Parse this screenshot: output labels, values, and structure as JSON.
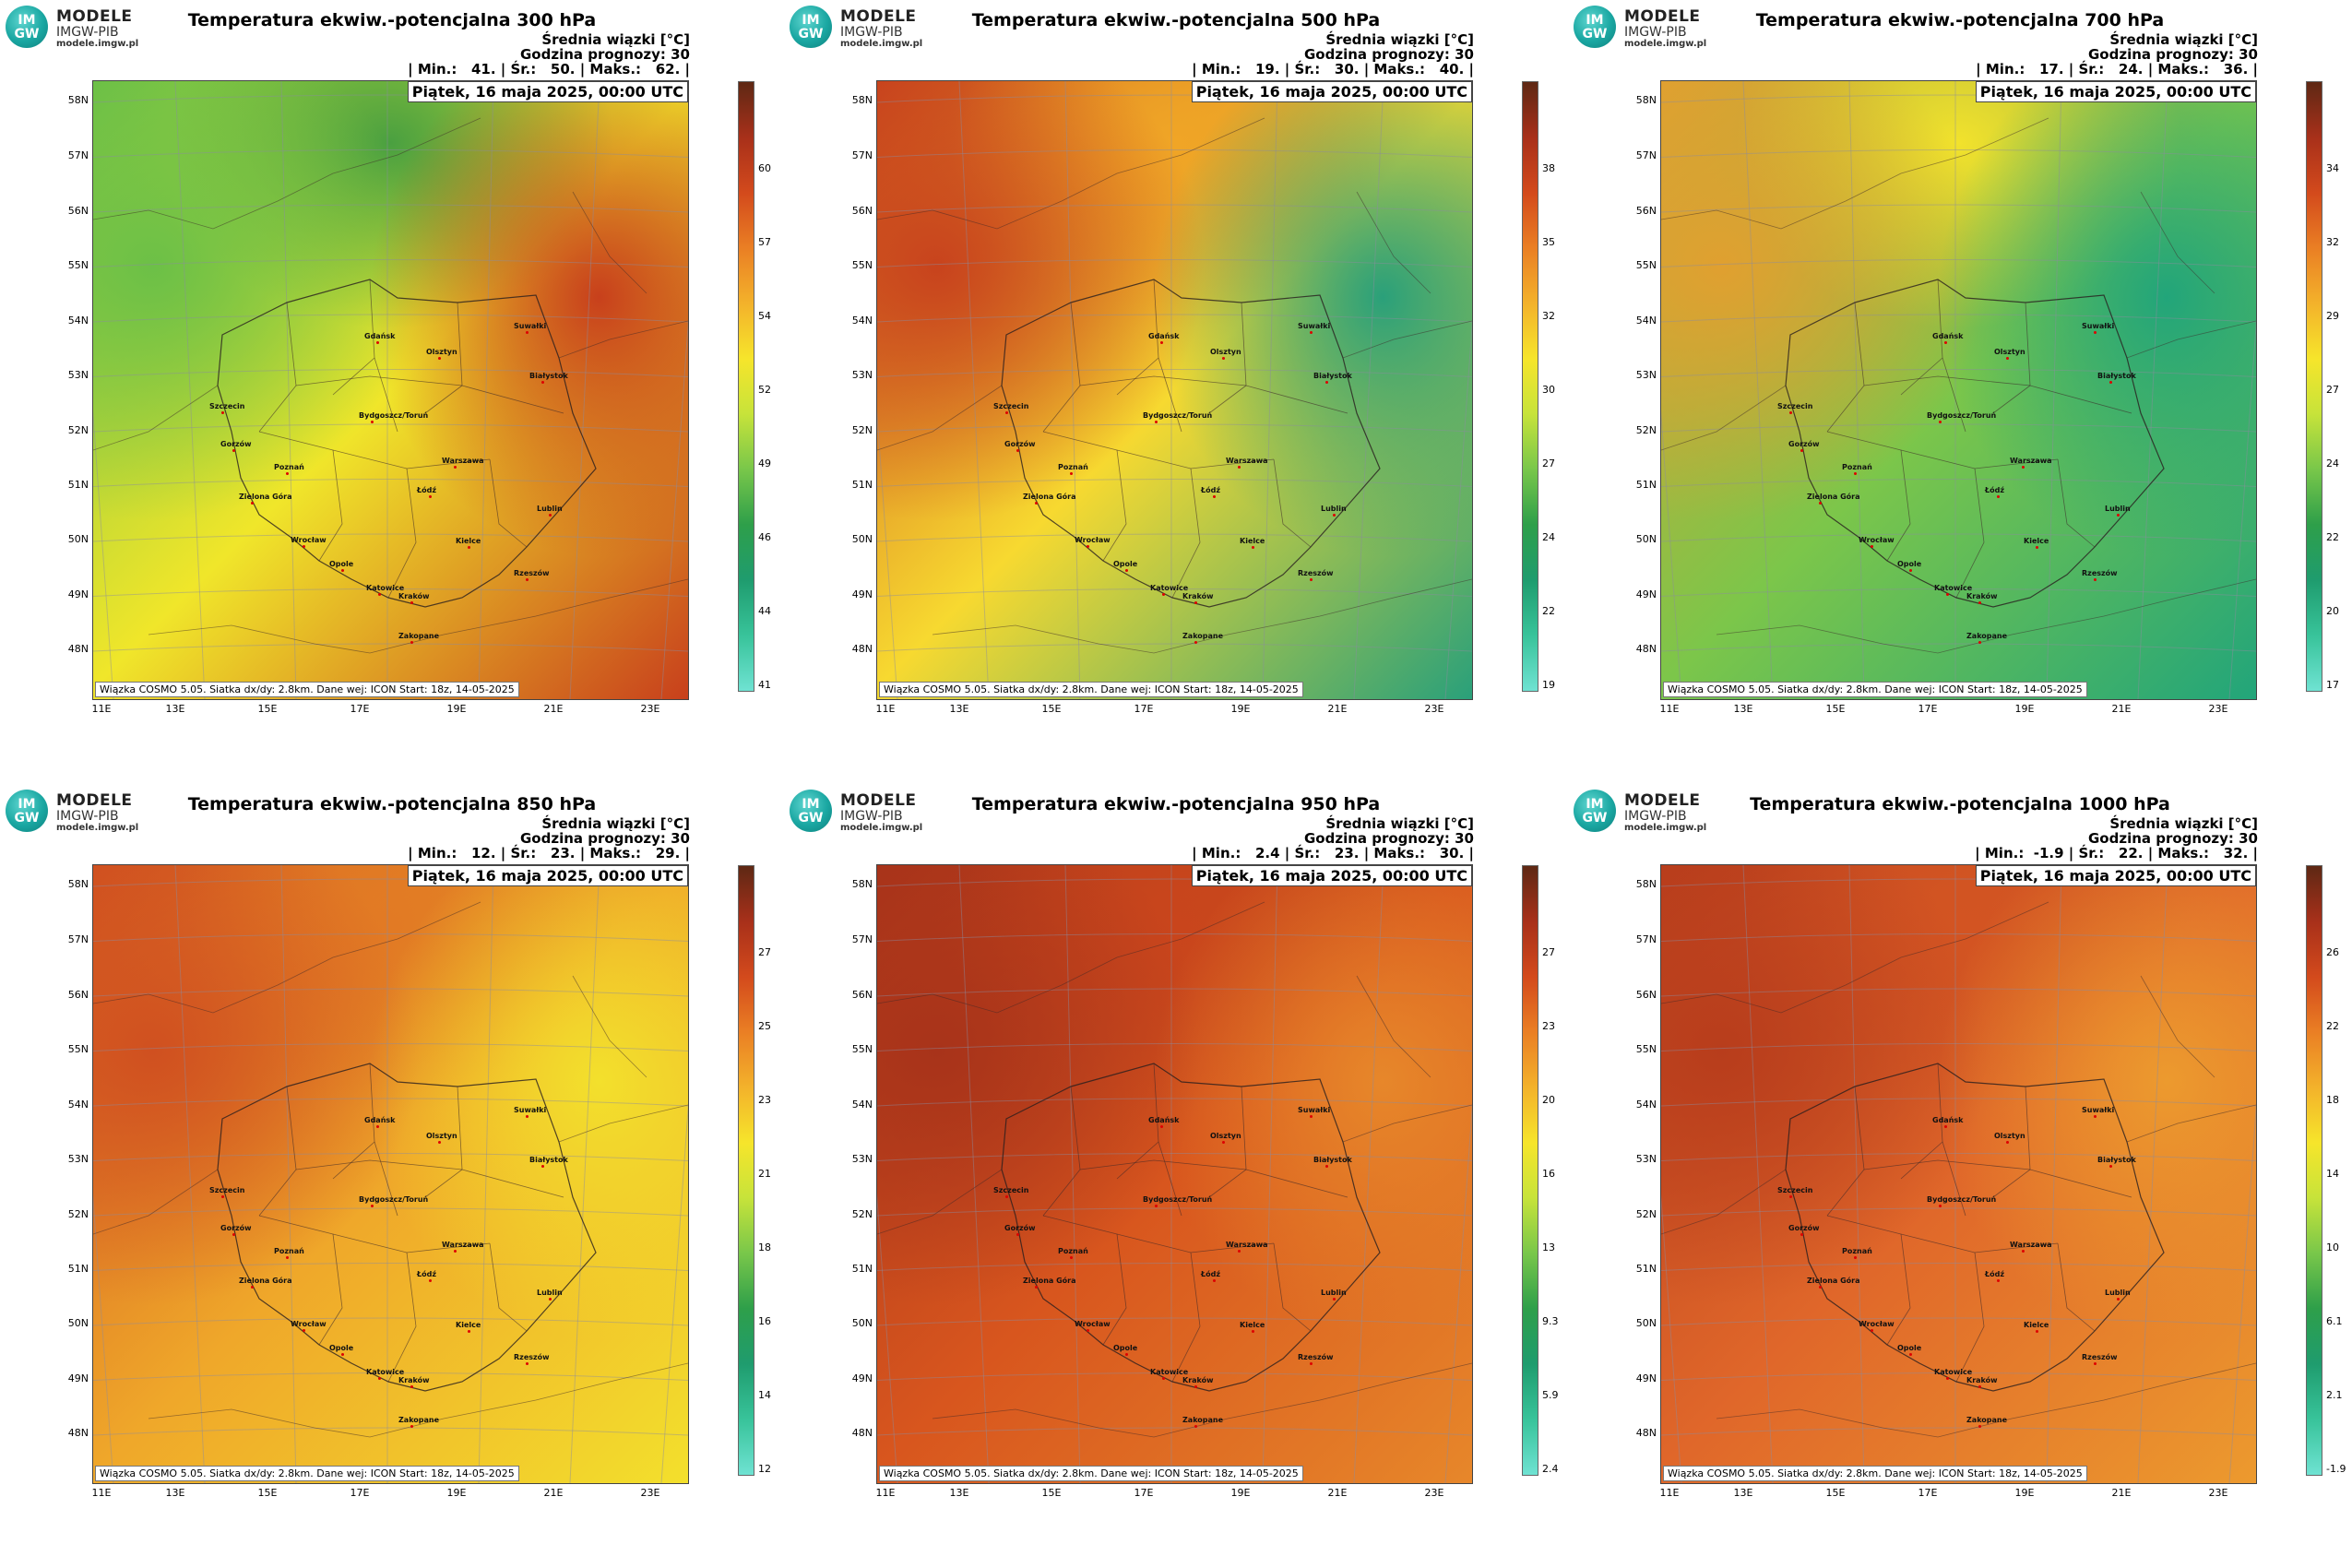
{
  "logo": {
    "mark_top": "IM",
    "mark_bottom": "GW",
    "line1": "MODELE",
    "line2": "IMGW-PIB",
    "line3": "modele.imgw.pl"
  },
  "common": {
    "mean_label": "Średnia wiązki [°C]",
    "hour_label": "Godzina prognozy: 30",
    "date_label": "Piątek, 16 maja 2025, 00:00 UTC",
    "footer": "Wiązka COSMO 5.05. Siatka dx/dy: 2.8km. Dane wej: ICON Start: 18z, 14-05-2025",
    "lat_labels": [
      "58N",
      "57N",
      "56N",
      "55N",
      "54N",
      "53N",
      "52N",
      "51N",
      "50N",
      "49N",
      "48N"
    ],
    "lon_labels": [
      "11E",
      "13E",
      "15E",
      "17E",
      "19E",
      "21E",
      "23E"
    ],
    "cities": [
      {
        "name": "Gdańsk"
      },
      {
        "name": "Suwałki"
      },
      {
        "name": "Olsztyn"
      },
      {
        "name": "Białystok"
      },
      {
        "name": "Szczecin"
      },
      {
        "name": "Bydgoszcz/Toruń"
      },
      {
        "name": "Gorzów"
      },
      {
        "name": "Poznań"
      },
      {
        "name": "Warszawa"
      },
      {
        "name": "Zielona Góra"
      },
      {
        "name": "Łódź"
      },
      {
        "name": "Lublin"
      },
      {
        "name": "Kielce"
      },
      {
        "name": "Wrocław"
      },
      {
        "name": "Opole"
      },
      {
        "name": "Rzeszów"
      },
      {
        "name": "Katowice"
      },
      {
        "name": "Kraków"
      },
      {
        "name": "Zakopane"
      }
    ]
  },
  "panels": [
    {
      "title": "Temperatura ekwiw.-potencjalna 300 hPa",
      "stats": "| Min.:   41. | Śr.:   50. | Maks.:   62. |",
      "colorbar_ticks": [
        "60",
        "57",
        "54",
        "52",
        "49",
        "46",
        "44",
        "41"
      ],
      "palette": {
        "west": "#6cc047",
        "center": "#f0e62a",
        "east": "#c8401c",
        "north": "#4aa040"
      }
    },
    {
      "title": "Temperatura ekwiw.-potencjalna 500 hPa",
      "stats": "| Min.:   19. | Śr.:   30. | Maks.:   40. |",
      "colorbar_ticks": [
        "38",
        "35",
        "32",
        "30",
        "27",
        "24",
        "22",
        "19"
      ],
      "palette": {
        "west": "#c8431d",
        "center": "#f7d930",
        "east": "#2aa07a",
        "north": "#f0a526"
      }
    },
    {
      "title": "Temperatura ekwiw.-potencjalna 700 hPa",
      "stats": "| Min.:   17. | Śr.:   24. | Maks.:   36. |",
      "colorbar_ticks": [
        "34",
        "32",
        "29",
        "27",
        "24",
        "22",
        "20",
        "17"
      ],
      "palette": {
        "west": "#e0a030",
        "center": "#7cc64a",
        "east": "#22a57a",
        "north": "#f2e22c"
      }
    },
    {
      "title": "Temperatura ekwiw.-potencjalna 850 hPa",
      "stats": "| Min.:   12. | Śr.:   23. | Maks.:   29. |",
      "colorbar_ticks": [
        "27",
        "25",
        "23",
        "21",
        "18",
        "16",
        "14",
        "12"
      ],
      "palette": {
        "west": "#d05020",
        "center": "#efa72a",
        "east": "#f3e02c",
        "north": "#e27a24"
      }
    },
    {
      "title": "Temperatura ekwiw.-potencjalna 950 hPa",
      "stats": "| Min.:   2.4 | Śr.:   23. | Maks.:   30. |",
      "colorbar_ticks": [
        "27",
        "23",
        "20",
        "16",
        "13",
        "9.3",
        "5.9",
        "2.4"
      ],
      "palette": {
        "west": "#a8331a",
        "center": "#d8561e",
        "east": "#e7872a",
        "north": "#c9451c"
      }
    },
    {
      "title": "Temperatura ekwiw.-potencjalna 1000 hPa",
      "stats": "| Min.:  -1.9 | Śr.:   22. | Maks.:   32. |",
      "colorbar_ticks": [
        "26",
        "22",
        "18",
        "14",
        "10",
        "6.1",
        "2.1",
        "-1.9"
      ],
      "palette": {
        "west": "#b83d1c",
        "center": "#e0672a",
        "east": "#ec9a2e",
        "north": "#d35422"
      }
    }
  ]
}
